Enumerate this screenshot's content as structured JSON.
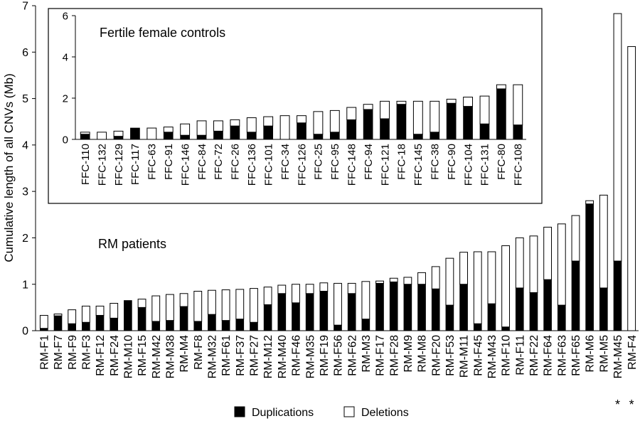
{
  "chart_data": [
    {
      "type": "bar",
      "stacked": true,
      "panel": "main",
      "ylabel": "Cumulative length of all CNVs (Mb)",
      "annotation": "RM patients",
      "ylim": [
        0,
        7
      ],
      "yticks": [
        "0",
        "1",
        "2",
        "3",
        "4",
        "5",
        "6",
        "7"
      ],
      "categories": [
        "RM-F1",
        "RM-F7",
        "RM-F9",
        "RM-F3",
        "RM-F12",
        "RM-F24",
        "RM-M10",
        "RM-F15",
        "RM-M42",
        "RM-M38",
        "RM-M4",
        "RM-F8",
        "RM-M32",
        "RM-F61",
        "RM-F37",
        "RM-F27",
        "RM-M12",
        "RM-M40",
        "RM-F46",
        "RM-M35",
        "RM-F19",
        "RM-F56",
        "RM-F62",
        "RM-M3",
        "RM-F17",
        "RM-F28",
        "RM-M9",
        "RM-M8",
        "RM-F20",
        "RM-F53",
        "RM-M11",
        "RM-F45",
        "RM-M43",
        "RM-F10",
        "RM-F11",
        "RM-F22",
        "RM-F64",
        "RM-F63",
        "RM-F65",
        "RM-M6",
        "RM-M5",
        "RM-M45",
        "RM-F4"
      ],
      "series": [
        {
          "name": "Duplications",
          "color": "#000000",
          "values": [
            0.05,
            0.32,
            0.15,
            0.18,
            0.33,
            0.27,
            0.65,
            0.5,
            0.2,
            0.22,
            0.52,
            0.2,
            0.35,
            0.22,
            0.25,
            0.18,
            0.56,
            0.8,
            0.6,
            0.8,
            0.85,
            0.12,
            0.8,
            0.25,
            1.02,
            1.05,
            1.0,
            1.0,
            0.9,
            0.55,
            1.0,
            0.15,
            0.58,
            0.08,
            0.92,
            0.82,
            1.1,
            0.55,
            1.5,
            2.73,
            0.92,
            1.5,
            0.0
          ]
        },
        {
          "name": "Deletions",
          "color": "#ffffff",
          "values": [
            0.28,
            0.04,
            0.3,
            0.35,
            0.2,
            0.32,
            0.0,
            0.18,
            0.55,
            0.56,
            0.28,
            0.65,
            0.52,
            0.66,
            0.64,
            0.73,
            0.38,
            0.18,
            0.4,
            0.2,
            0.18,
            0.9,
            0.22,
            0.81,
            0.05,
            0.08,
            0.15,
            0.25,
            0.48,
            1.01,
            0.69,
            1.55,
            1.12,
            1.75,
            1.08,
            1.22,
            1.13,
            1.75,
            0.98,
            0.07,
            2.0,
            5.33,
            6.12
          ]
        }
      ],
      "markers": {
        "RM-M45": "*",
        "RM-F4": "*"
      }
    },
    {
      "type": "bar",
      "stacked": true,
      "panel": "inset",
      "title": "Fertile female controls",
      "ylim": [
        0,
        6
      ],
      "yticks": [
        "0",
        "2",
        "4",
        "6"
      ],
      "categories": [
        "FFC-110",
        "FFC-132",
        "FFC-129",
        "FFC-117",
        "FFC-63",
        "FFC-91",
        "FFC-146",
        "FFC-84",
        "FFC-72",
        "FFC-26",
        "FFC-136",
        "FFC-101",
        "FFC-34",
        "FFC-126",
        "FFC-25",
        "FFC-95",
        "FFC-148",
        "FFC-94",
        "FFC-121",
        "FFC-18",
        "FFC-145",
        "FFC-38",
        "FFC-90",
        "FFC-104",
        "FFC-131",
        "FFC-80",
        "FFC-108"
      ],
      "series": [
        {
          "name": "Duplications",
          "color": "#000000",
          "values": [
            0.25,
            0.0,
            0.15,
            0.55,
            0.0,
            0.35,
            0.2,
            0.2,
            0.4,
            0.65,
            0.35,
            0.65,
            0.0,
            0.8,
            0.25,
            0.35,
            0.95,
            1.45,
            1.0,
            1.7,
            0.25,
            0.35,
            1.75,
            1.6,
            0.75,
            2.45,
            0.7
          ]
        },
        {
          "name": "Deletions",
          "color": "#ffffff",
          "values": [
            0.1,
            0.35,
            0.25,
            0.0,
            0.55,
            0.25,
            0.55,
            0.7,
            0.5,
            0.3,
            0.7,
            0.45,
            1.15,
            0.35,
            1.1,
            1.05,
            0.6,
            0.25,
            0.85,
            0.15,
            1.6,
            1.5,
            0.2,
            0.45,
            1.35,
            0.2,
            1.95
          ]
        }
      ]
    }
  ],
  "legend": [
    {
      "label": "Duplications",
      "color": "#000000"
    },
    {
      "label": "Deletions",
      "color": "#ffffff"
    }
  ]
}
